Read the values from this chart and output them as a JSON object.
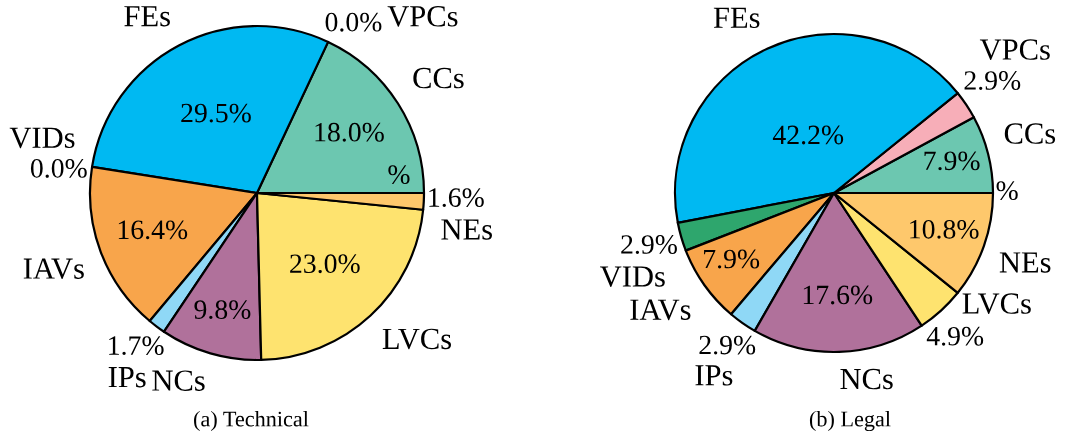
{
  "chart_data": [
    {
      "type": "pie",
      "title": "(a) Technical",
      "categories": [
        "CCs",
        "VPCs",
        "FEs",
        "VIDs",
        "IAVs",
        "IPs",
        "NCs",
        "LVCs",
        "NEs",
        null
      ],
      "values": [
        18.0,
        0,
        29.5,
        0,
        16.4,
        1.7,
        9.8,
        23.0,
        1.6,
        0
      ],
      "value_labels": [
        "18.0%",
        "0.0%",
        "29.5%",
        "0.0%",
        "16.4%",
        "1.7%",
        "9.8%",
        "23.0%",
        "1.6%",
        "%"
      ],
      "colors": [
        "#6cc7b0",
        "#f7aeb8",
        "#00b9f2",
        "#2ea66d",
        "#f8a54b",
        "#8fd8f6",
        "#b0719b",
        "#fee36f",
        "#fec86c",
        null
      ]
    },
    {
      "type": "pie",
      "title": "(b) Legal",
      "categories": [
        "CCs",
        "VPCs",
        "FEs",
        "VIDs",
        "IAVs",
        "IPs",
        "NCs",
        "LVCs",
        "NEs",
        null
      ],
      "values": [
        7.9,
        2.9,
        42.2,
        2.9,
        7.9,
        2.9,
        17.6,
        4.9,
        10.8,
        0
      ],
      "value_labels": [
        "7.9%",
        "2.9%",
        "42.2%",
        "2.9%",
        "7.9%",
        "2.9%",
        "17.6%",
        "4.9%",
        "10.8%",
        "%"
      ],
      "colors": [
        "#6cc7b0",
        "#f7aeb8",
        "#00b9f2",
        "#2ea66d",
        "#f8a54b",
        "#8fd8f6",
        "#b0719b",
        "#fee36f",
        "#fec86c",
        null
      ]
    }
  ]
}
